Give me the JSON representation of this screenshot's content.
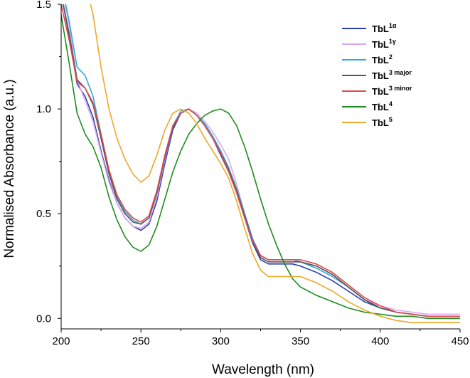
{
  "chart_data": {
    "type": "line",
    "title": "",
    "xlabel": "Wavelength (nm)",
    "ylabel": "Normalised Absorbance (a.u.)",
    "xlim": [
      200,
      450
    ],
    "ylim": [
      -0.05,
      1.5
    ],
    "xticks": [
      "200",
      "250",
      "300",
      "350",
      "400",
      "450"
    ],
    "yticks": [
      "0.0",
      "0.5",
      "1.0",
      "1.5"
    ],
    "grid": false,
    "legend_position": "top-right",
    "series": [
      {
        "name": "TbL1α",
        "base": "TbL",
        "sup": "1α",
        "color": "#2a3fb5",
        "x": [
          200,
          205,
          210,
          215,
          220,
          225,
          230,
          235,
          240,
          245,
          250,
          255,
          260,
          265,
          270,
          275,
          280,
          285,
          290,
          295,
          300,
          305,
          310,
          315,
          320,
          325,
          330,
          335,
          340,
          345,
          350,
          360,
          370,
          380,
          390,
          400,
          410,
          420,
          430,
          440,
          450
        ],
        "y": [
          1.55,
          1.35,
          1.12,
          1.06,
          0.96,
          0.8,
          0.66,
          0.55,
          0.48,
          0.44,
          0.42,
          0.45,
          0.56,
          0.74,
          0.9,
          0.98,
          1.0,
          0.97,
          0.92,
          0.86,
          0.78,
          0.7,
          0.6,
          0.48,
          0.36,
          0.28,
          0.26,
          0.26,
          0.26,
          0.26,
          0.25,
          0.22,
          0.18,
          0.13,
          0.08,
          0.05,
          0.03,
          0.02,
          0.01,
          0.01,
          0.01
        ]
      },
      {
        "name": "TbL1γ",
        "base": "TbL",
        "sup": "1γ",
        "color": "#d9a8ef",
        "x": [
          200,
          205,
          210,
          215,
          220,
          225,
          230,
          235,
          240,
          245,
          250,
          255,
          260,
          265,
          270,
          275,
          280,
          285,
          290,
          295,
          300,
          305,
          310,
          315,
          320,
          325,
          330,
          335,
          340,
          345,
          350,
          360,
          370,
          380,
          390,
          400,
          410,
          420,
          430,
          440,
          450
        ],
        "y": [
          1.6,
          1.4,
          1.14,
          1.04,
          0.94,
          0.79,
          0.65,
          0.55,
          0.48,
          0.44,
          0.43,
          0.46,
          0.58,
          0.76,
          0.91,
          0.98,
          1.0,
          0.98,
          0.94,
          0.89,
          0.83,
          0.76,
          0.64,
          0.5,
          0.38,
          0.3,
          0.28,
          0.28,
          0.28,
          0.28,
          0.27,
          0.25,
          0.21,
          0.15,
          0.09,
          0.06,
          0.04,
          0.03,
          0.02,
          0.02,
          0.02
        ]
      },
      {
        "name": "TbL2",
        "base": "TbL",
        "sup": "2",
        "color": "#33a8e0",
        "x": [
          200,
          205,
          210,
          215,
          220,
          225,
          230,
          235,
          240,
          245,
          250,
          255,
          260,
          265,
          270,
          275,
          280,
          285,
          290,
          295,
          300,
          305,
          310,
          315,
          320,
          325,
          330,
          335,
          340,
          345,
          350,
          360,
          370,
          380,
          390,
          400,
          410,
          420,
          430,
          440,
          450
        ],
        "y": [
          1.6,
          1.42,
          1.2,
          1.16,
          1.06,
          0.88,
          0.7,
          0.58,
          0.51,
          0.47,
          0.45,
          0.48,
          0.6,
          0.78,
          0.92,
          0.99,
          1.0,
          0.97,
          0.93,
          0.87,
          0.8,
          0.72,
          0.62,
          0.5,
          0.38,
          0.3,
          0.28,
          0.28,
          0.28,
          0.28,
          0.27,
          0.24,
          0.2,
          0.15,
          0.09,
          0.05,
          0.03,
          0.02,
          0.01,
          0.01,
          0.01
        ]
      },
      {
        "name": "TbL3 major",
        "base": "TbL",
        "sup": "3 major",
        "color": "#555555",
        "x": [
          200,
          205,
          210,
          215,
          220,
          225,
          230,
          235,
          240,
          245,
          250,
          255,
          260,
          265,
          270,
          275,
          280,
          285,
          290,
          295,
          300,
          305,
          310,
          315,
          320,
          325,
          330,
          335,
          340,
          345,
          350,
          360,
          370,
          380,
          390,
          400,
          410,
          420,
          430,
          440,
          450
        ],
        "y": [
          1.55,
          1.36,
          1.14,
          1.1,
          1.02,
          0.86,
          0.69,
          0.57,
          0.5,
          0.46,
          0.45,
          0.48,
          0.6,
          0.77,
          0.91,
          0.98,
          1.0,
          0.97,
          0.92,
          0.86,
          0.79,
          0.71,
          0.61,
          0.49,
          0.37,
          0.29,
          0.27,
          0.27,
          0.27,
          0.27,
          0.27,
          0.25,
          0.21,
          0.15,
          0.09,
          0.05,
          0.03,
          0.02,
          0.01,
          0.01,
          0.01
        ]
      },
      {
        "name": "TbL3 minor",
        "base": "TbL",
        "sup": "3 minor",
        "color": "#e04a4a",
        "x": [
          200,
          205,
          210,
          215,
          220,
          225,
          230,
          235,
          240,
          245,
          250,
          255,
          260,
          265,
          270,
          275,
          280,
          285,
          290,
          295,
          300,
          305,
          310,
          315,
          320,
          325,
          330,
          335,
          340,
          345,
          350,
          360,
          370,
          380,
          390,
          400,
          410,
          420,
          430,
          440,
          450
        ],
        "y": [
          1.5,
          1.33,
          1.13,
          1.1,
          1.03,
          0.88,
          0.71,
          0.59,
          0.52,
          0.48,
          0.46,
          0.49,
          0.61,
          0.78,
          0.92,
          0.98,
          1.0,
          0.97,
          0.92,
          0.86,
          0.79,
          0.7,
          0.6,
          0.48,
          0.37,
          0.3,
          0.28,
          0.28,
          0.28,
          0.28,
          0.28,
          0.26,
          0.22,
          0.16,
          0.1,
          0.06,
          0.03,
          0.02,
          0.01,
          0.01,
          0.01
        ]
      },
      {
        "name": "TbL4",
        "base": "TbL",
        "sup": "4",
        "color": "#1e8c1e",
        "x": [
          200,
          205,
          210,
          215,
          220,
          225,
          230,
          235,
          240,
          245,
          250,
          255,
          260,
          265,
          270,
          275,
          280,
          285,
          290,
          295,
          300,
          305,
          310,
          315,
          320,
          325,
          330,
          335,
          340,
          345,
          350,
          360,
          370,
          380,
          390,
          400,
          410,
          420,
          430,
          440,
          450
        ],
        "y": [
          1.45,
          1.22,
          0.98,
          0.88,
          0.82,
          0.72,
          0.58,
          0.47,
          0.39,
          0.34,
          0.32,
          0.35,
          0.44,
          0.57,
          0.7,
          0.8,
          0.88,
          0.93,
          0.97,
          0.99,
          1.0,
          0.98,
          0.92,
          0.82,
          0.7,
          0.57,
          0.45,
          0.35,
          0.26,
          0.19,
          0.15,
          0.11,
          0.08,
          0.05,
          0.03,
          0.02,
          0.01,
          0.01,
          0.0,
          0.0,
          0.0
        ]
      },
      {
        "name": "TbL5",
        "base": "TbL",
        "sup": "5",
        "color": "#f0a62a",
        "x": [
          210,
          215,
          220,
          225,
          230,
          235,
          240,
          245,
          250,
          255,
          260,
          265,
          270,
          275,
          280,
          285,
          290,
          295,
          300,
          305,
          310,
          315,
          320,
          325,
          330,
          335,
          340,
          345,
          350,
          360,
          370,
          380,
          390,
          400,
          410,
          420,
          430,
          440,
          450
        ],
        "y": [
          1.75,
          1.6,
          1.45,
          1.2,
          1.0,
          0.86,
          0.76,
          0.69,
          0.65,
          0.68,
          0.78,
          0.9,
          0.98,
          1.0,
          0.98,
          0.93,
          0.86,
          0.8,
          0.74,
          0.67,
          0.56,
          0.43,
          0.31,
          0.23,
          0.2,
          0.2,
          0.2,
          0.2,
          0.2,
          0.17,
          0.13,
          0.08,
          0.04,
          0.01,
          -0.01,
          -0.02,
          -0.02,
          -0.02,
          -0.02
        ]
      }
    ]
  }
}
